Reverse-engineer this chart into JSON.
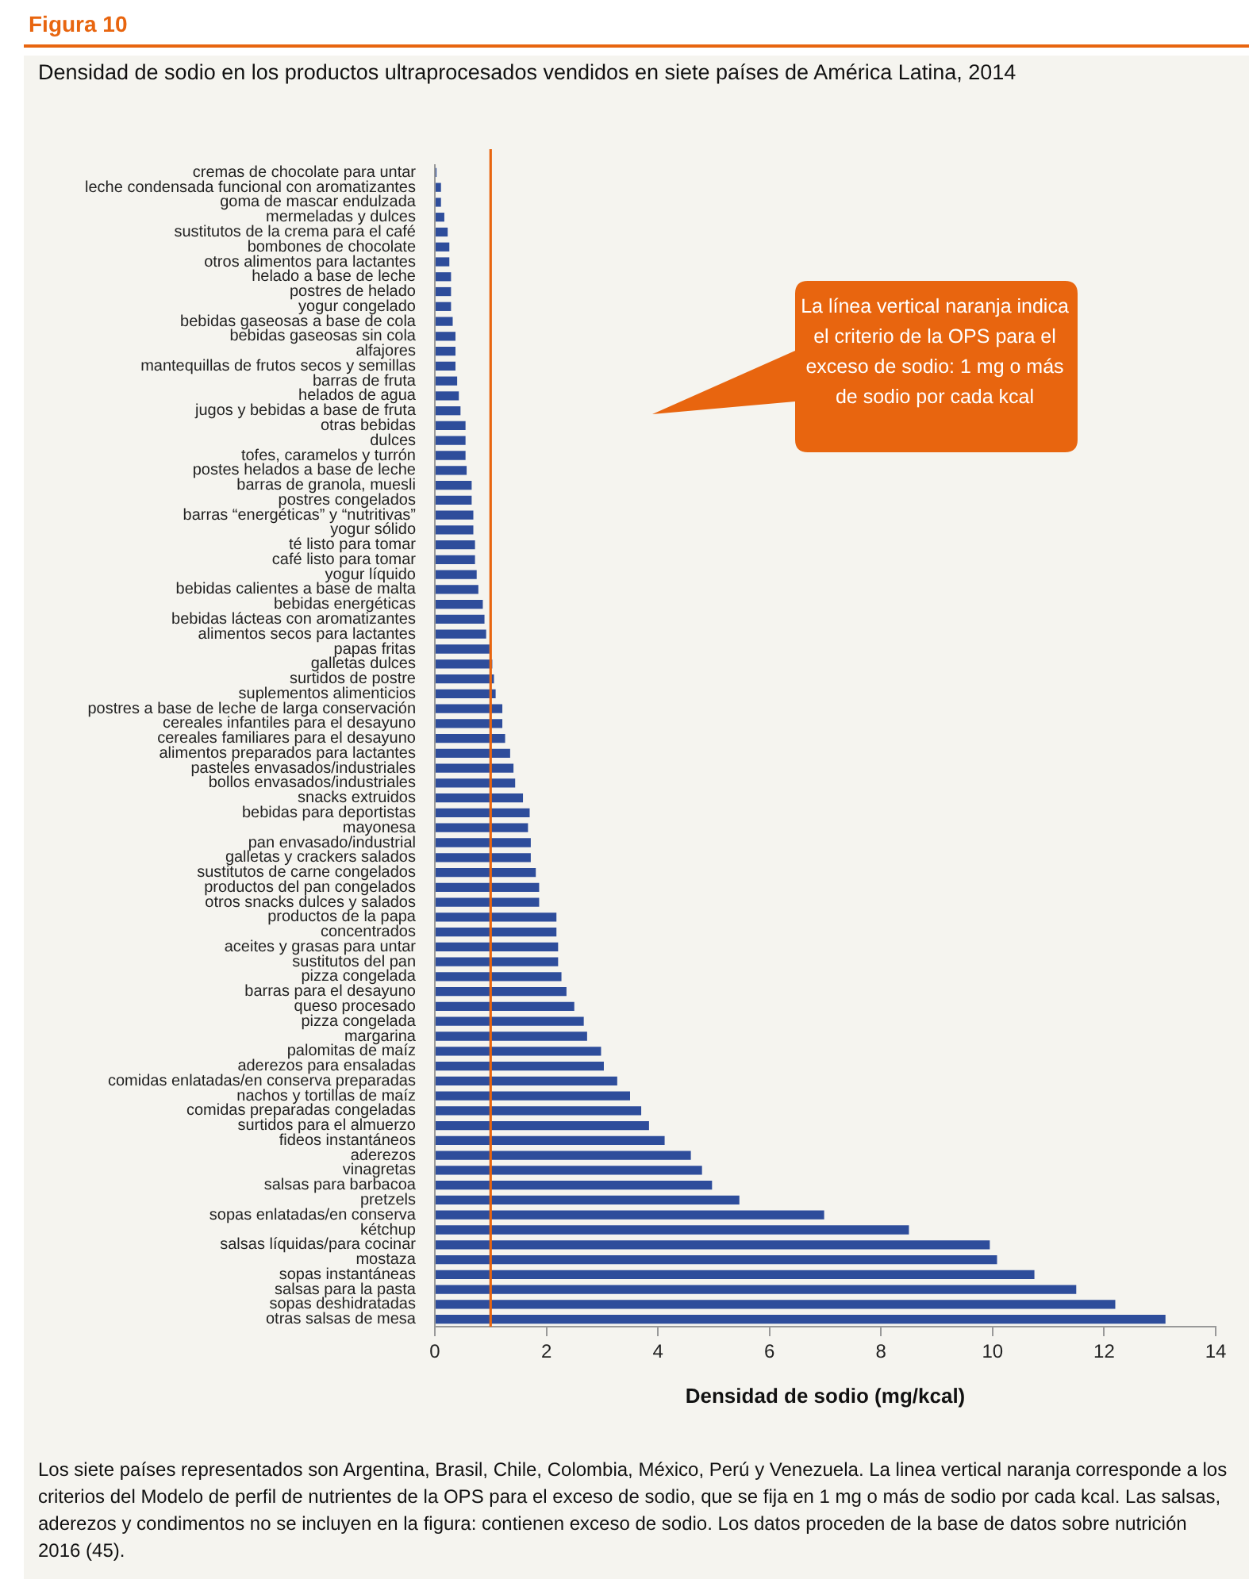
{
  "chart_data": {
    "type": "bar",
    "orientation": "horizontal",
    "title": "Figura 10",
    "subtitle": "Densidad de sodio en los productos ultraprocesados vendidos en siete países de América Latina, 2014",
    "xlabel": "Densidad de sodio (mg/kcal)",
    "categories": [
      "cremas de chocolate para untar",
      "leche condensada funcional con aromatizantes",
      "goma de mascar endulzada",
      "mermeladas y dulces",
      "sustitutos de la crema para el café",
      "bombones de chocolate",
      "otros alimentos para lactantes",
      "helado a base de leche",
      "postres de helado",
      "yogur congelado",
      "bebidas gaseosas a base de cola",
      "bebidas gaseosas sin cola",
      "alfajores",
      "mantequillas de frutos secos y semillas",
      "barras de fruta",
      "helados de agua",
      "jugos y bebidas a base de fruta",
      "otras bebidas",
      "dulces",
      "tofes, caramelos y turrón",
      "postes helados a base de leche",
      "barras de granola, muesli",
      "postres congelados",
      "barras “energéticas” y “nutritivas”",
      "yogur sólido",
      "té listo para tomar",
      "café listo para tomar",
      "yogur líquido",
      "bebidas calientes a base de malta",
      "bebidas energéticas",
      "bebidas lácteas con aromatizantes",
      "alimentos secos para lactantes",
      "papas fritas",
      "galletas dulces",
      "surtidos de postre",
      "suplementos alimenticios",
      "postres a base de leche de larga conservación",
      "cereales infantiles para el desayuno",
      "cereales familiares para el desayuno",
      "alimentos preparados para lactantes",
      "pasteles envasados/industriales",
      "bollos envasados/industriales",
      "snacks extruidos",
      "bebidas para deportistas",
      "mayonesa",
      "pan envasado/industrial",
      "galletas y crackers salados",
      "sustitutos de carne congelados",
      "productos del pan congelados",
      "otros snacks dulces y salados",
      "productos de la papa",
      "concentrados",
      "aceites y grasas para untar",
      "sustitutos del pan",
      "pizza congelada",
      "barras para el desayuno",
      "queso procesado",
      "pizza congelada",
      "margarina",
      "palomitas de maíz",
      "aderezos para ensaladas",
      "comidas enlatadas/en conserva preparadas",
      "nachos y tortillas de maíz",
      "comidas preparadas congeladas",
      "surtidos para el almuerzo",
      "fideos instantáneos",
      "aderezos",
      "vinagretas",
      "salsas para barbacoa",
      "pretzels",
      "sopas enlatadas/en conserva",
      "kétchup",
      "salsas líquidas/para cocinar",
      "mostaza",
      "sopas instantáneas",
      "salsas para la pasta",
      "sopas deshidratadas",
      "otras salsas de mesa"
    ],
    "values": [
      0.03,
      0.11,
      0.11,
      0.17,
      0.23,
      0.26,
      0.26,
      0.29,
      0.29,
      0.29,
      0.32,
      0.37,
      0.37,
      0.37,
      0.4,
      0.43,
      0.46,
      0.55,
      0.55,
      0.55,
      0.57,
      0.66,
      0.66,
      0.69,
      0.69,
      0.72,
      0.72,
      0.75,
      0.78,
      0.86,
      0.89,
      0.92,
      0.98,
      1.03,
      1.06,
      1.09,
      1.21,
      1.21,
      1.26,
      1.35,
      1.41,
      1.44,
      1.58,
      1.7,
      1.67,
      1.72,
      1.72,
      1.81,
      1.87,
      1.87,
      2.18,
      2.18,
      2.21,
      2.21,
      2.27,
      2.36,
      2.5,
      2.67,
      2.73,
      2.98,
      3.03,
      3.27,
      3.5,
      3.7,
      3.84,
      4.12,
      4.59,
      4.79,
      4.97,
      5.46,
      6.98,
      8.5,
      9.95,
      10.08,
      10.75,
      11.5,
      12.2,
      13.1
    ],
    "color": "#2e4d9b",
    "xlim": [
      0,
      14
    ],
    "xticks": [
      0,
      2,
      4,
      6,
      8,
      10,
      12,
      14
    ],
    "grid": false,
    "legend": false,
    "ref_lines": [
      {
        "axis": "x",
        "value": 1,
        "color": "#e8650f"
      }
    ],
    "annotations": [
      "La línea vertical naranja indica el criterio de la OPS para el exceso de sodio: 1 mg o más de sodio por cada kcal",
      "Los siete países representados son Argentina, Brasil, Chile, Colombia, México, Perú y Venezuela. La linea vertical naranja corresponde a los criterios del Modelo de perfil de nutrientes de la OPS para el exceso de sodio, que se fija en 1 mg o más de sodio por cada kcal. Las salsas, aderezos y condimentos no se incluyen en la figura: contienen exceso de sodio. Los datos proceden de la base de datos sobre nutrición 2016 (45)."
    ]
  }
}
